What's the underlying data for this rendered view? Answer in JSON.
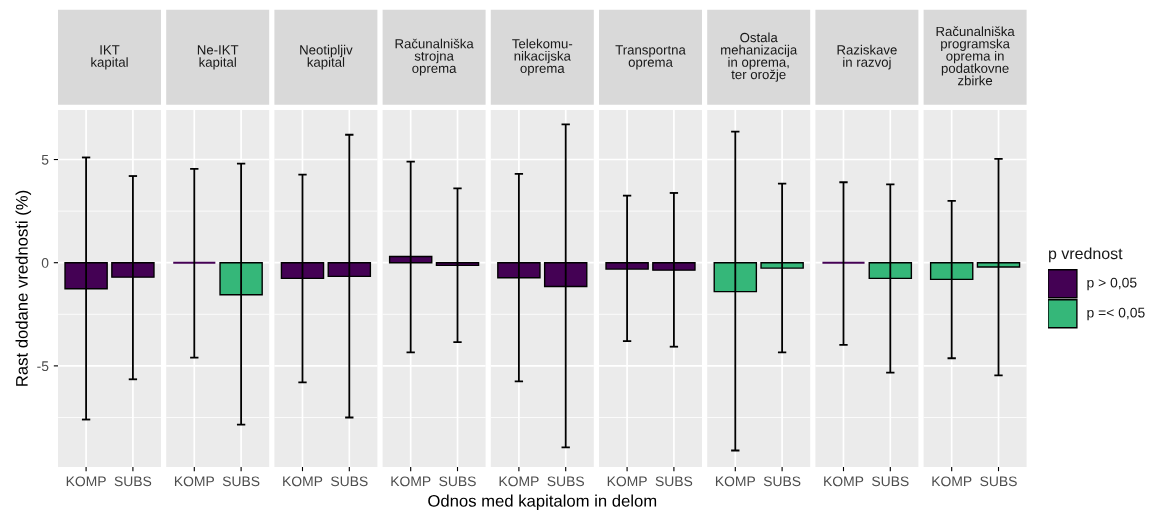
{
  "chart_data": [
    {
      "type": "bar",
      "title": "IKT\nkapital",
      "ylabel": "Rast dodane vrednosti (%)",
      "categories": [
        "KOMP",
        "SUBS"
      ],
      "ylim": [
        -9.9,
        7.4
      ],
      "yticks": [
        -5,
        0,
        5
      ],
      "grid": true,
      "values": [
        -1.26,
        -0.7
      ],
      "colors": [
        "#440154",
        "#440154"
      ],
      "errors": [
        [
          -7.6,
          5.1
        ],
        [
          -5.65,
          4.2
        ]
      ]
    },
    {
      "type": "bar",
      "title": "Ne-IKT\nkapital",
      "categories": [
        "KOMP",
        "SUBS"
      ],
      "ylim": [
        -9.9,
        7.4
      ],
      "yticks": [
        -5,
        0,
        5
      ],
      "grid": true,
      "tick_labels": "x",
      "values": [
        0,
        -1.55
      ],
      "colors": [
        "#440154",
        "#35b779"
      ],
      "errors": [
        [
          -4.6,
          4.55
        ],
        [
          -7.85,
          4.8
        ]
      ]
    },
    {
      "type": "bar",
      "title": "Neotipljiv\nkapital",
      "categories": [
        "KOMP",
        "SUBS"
      ],
      "ylim": [
        -9.9,
        7.4
      ],
      "yticks": [
        -5,
        0,
        5
      ],
      "grid": true,
      "tick_labels": "x",
      "values": [
        -0.76,
        -0.66
      ],
      "colors": [
        "#440154",
        "#440154"
      ],
      "errors": [
        [
          -5.8,
          4.27
        ],
        [
          -7.5,
          6.2
        ]
      ]
    },
    {
      "type": "bar",
      "title": "Računalniška\nstrojna\noprema",
      "categories": [
        "KOMP",
        "SUBS"
      ],
      "ylim": [
        -9.9,
        7.4
      ],
      "yticks": [
        -5,
        0,
        5
      ],
      "grid": true,
      "tick_labels": "x",
      "values": [
        0.3,
        -0.13
      ],
      "colors": [
        "#440154",
        "#440154"
      ],
      "errors": [
        [
          -4.35,
          4.9
        ],
        [
          -3.85,
          3.6
        ]
      ]
    },
    {
      "type": "bar",
      "title": "Telekomu-\nnikacijska\noprema",
      "xlabel": "Odnos med kapitalom in delom",
      "categories": [
        "KOMP",
        "SUBS"
      ],
      "ylim": [
        -9.9,
        7.4
      ],
      "yticks": [
        -5,
        0,
        5
      ],
      "grid": true,
      "tick_labels": "x",
      "values": [
        -0.73,
        -1.15
      ],
      "colors": [
        "#440154",
        "#440154"
      ],
      "errors": [
        [
          -5.75,
          4.3
        ],
        [
          -8.95,
          6.7
        ]
      ]
    },
    {
      "type": "bar",
      "title": "Transportna\noprema",
      "categories": [
        "KOMP",
        "SUBS"
      ],
      "ylim": [
        -9.9,
        7.4
      ],
      "yticks": [
        -5,
        0,
        5
      ],
      "grid": true,
      "tick_labels": "x",
      "values": [
        -0.31,
        -0.36
      ],
      "colors": [
        "#440154",
        "#440154"
      ],
      "errors": [
        [
          -3.8,
          3.25
        ],
        [
          -4.07,
          3.38
        ]
      ]
    },
    {
      "type": "bar",
      "title": "Ostala\nmehanizacija\nin oprema,\nter orožje",
      "categories": [
        "KOMP",
        "SUBS"
      ],
      "ylim": [
        -9.9,
        7.4
      ],
      "yticks": [
        -5,
        0,
        5
      ],
      "grid": true,
      "tick_labels": "x",
      "values": [
        -1.4,
        -0.26
      ],
      "colors": [
        "#35b779",
        "#35b779"
      ],
      "errors": [
        [
          -9.1,
          6.35
        ],
        [
          -4.35,
          3.83
        ]
      ]
    },
    {
      "type": "bar",
      "title": "Raziskave\nin razvoj",
      "categories": [
        "KOMP",
        "SUBS"
      ],
      "ylim": [
        -9.9,
        7.4
      ],
      "yticks": [
        -5,
        0,
        5
      ],
      "grid": true,
      "tick_labels": "x",
      "values": [
        0,
        -0.76
      ],
      "colors": [
        "#440154",
        "#35b779"
      ],
      "errors": [
        [
          -3.98,
          3.9
        ],
        [
          -5.33,
          3.8
        ]
      ]
    },
    {
      "type": "bar",
      "title": "Računalniška\nprogramska\noprema in\npodatkovne\nzbirke",
      "categories": [
        "KOMP",
        "SUBS"
      ],
      "ylim": [
        -9.9,
        7.4
      ],
      "yticks": [
        -5,
        0,
        5
      ],
      "grid": true,
      "tick_labels": "x",
      "values": [
        -0.81,
        -0.21
      ],
      "colors": [
        "#35b779",
        "#35b779"
      ],
      "errors": [
        [
          -4.63,
          3.0
        ],
        [
          -5.46,
          5.03
        ]
      ]
    },
    {
      "type": "other",
      "legend_title": "p vrednost",
      "categories": [
        "p > 0,05",
        "p =< 0,05"
      ],
      "colors": [
        "#440154",
        "#35b779"
      ]
    }
  ]
}
